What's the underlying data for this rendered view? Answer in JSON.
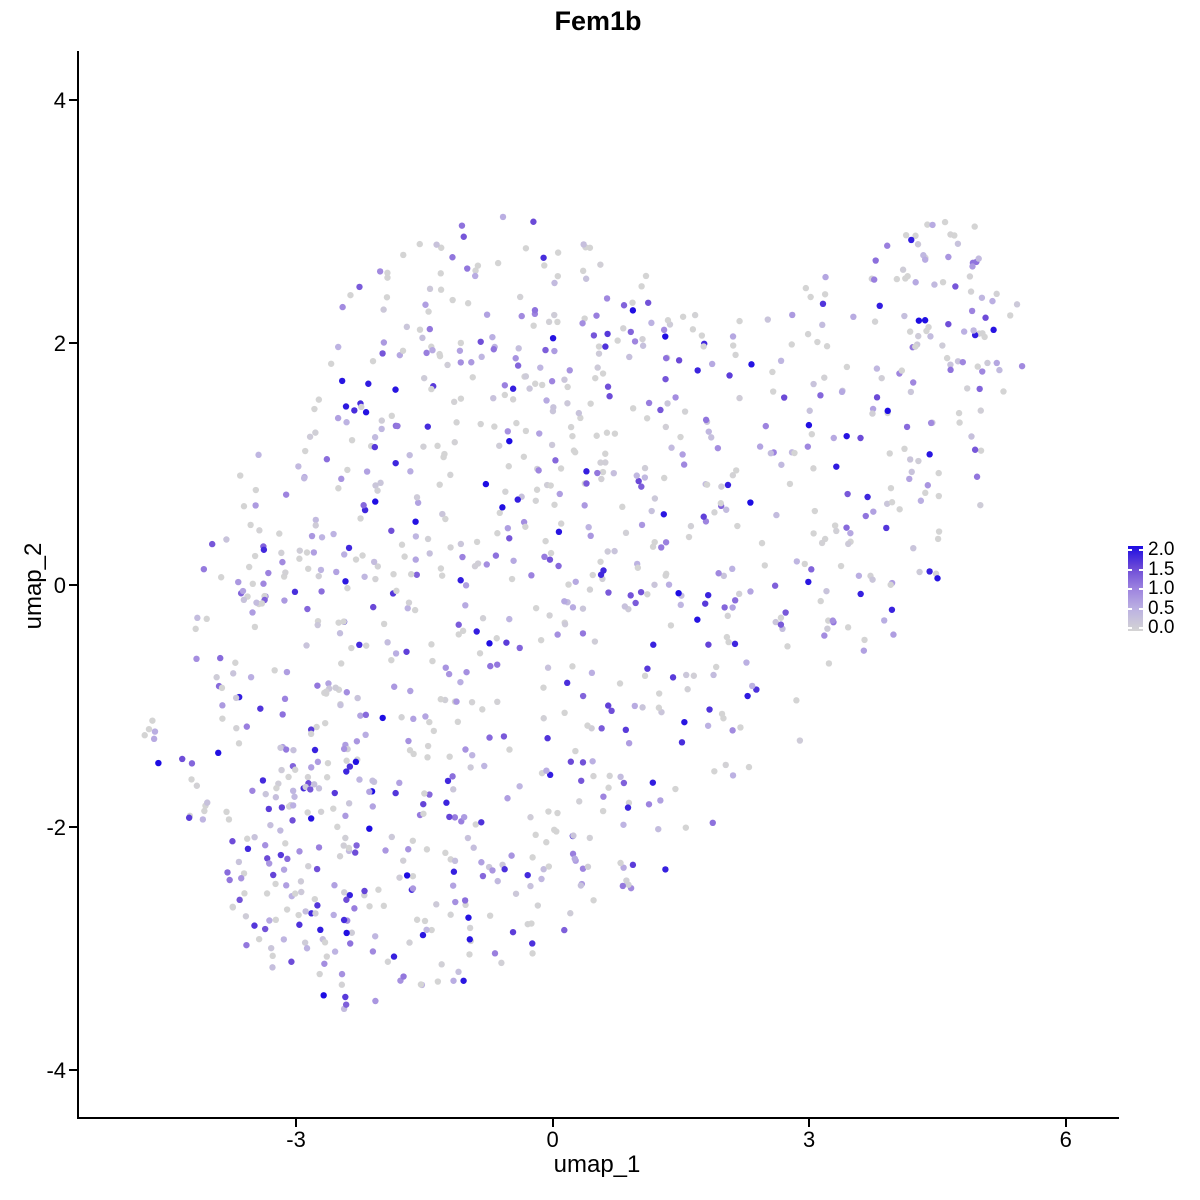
{
  "title": "Fem1b",
  "axes": {
    "x": {
      "label": "umap_1",
      "tick_labels": [
        "-3",
        "0",
        "3",
        "6"
      ],
      "tick_values": [
        -3,
        0,
        3,
        6
      ]
    },
    "y": {
      "label": "umap_2",
      "tick_labels": [
        "-4",
        "-2",
        "0",
        "2",
        "4"
      ],
      "tick_values": [
        -4,
        -2,
        0,
        2,
        4
      ]
    }
  },
  "legend": {
    "breaks": [
      2.0,
      1.5,
      1.0,
      0.5,
      0.0
    ],
    "labels": [
      "2.0",
      "1.5",
      "1.0",
      "0.5",
      "0.0"
    ]
  },
  "chart_data": {
    "type": "scatter",
    "title": "Fem1b",
    "xlabel": "umap_1",
    "ylabel": "umap_2",
    "xlim": [
      -5.55,
      6.6
    ],
    "ylim": [
      -4.4,
      4.4
    ],
    "x_ticks": [
      -3,
      0,
      3,
      6
    ],
    "y_ticks": [
      -4,
      -2,
      0,
      2,
      4
    ],
    "grid": false,
    "axis_style": "classic-left-bottom-only",
    "legend_position": "right-middle",
    "legend_title": "",
    "color_scale": {
      "domain": [
        0,
        2
      ],
      "breaks": [
        0.0,
        0.5,
        1.0,
        1.5,
        2.0
      ],
      "stops": [
        "#D4D4D4",
        "#BDB3E2",
        "#9D83DF",
        "#6A48D7",
        "#1D0CE3"
      ],
      "low_color_name": "lightgrey",
      "high_color_name": "blue"
    },
    "points": {
      "n": 1150,
      "seed": 7,
      "radius_px": 3.2,
      "boundary_polygon": [
        [
          -0.8,
          3.2
        ],
        [
          0.2,
          2.9
        ],
        [
          1.0,
          2.62
        ],
        [
          2.0,
          2.18
        ],
        [
          2.65,
          2.32
        ],
        [
          3.3,
          2.62
        ],
        [
          3.9,
          2.95
        ],
        [
          4.5,
          3.15
        ],
        [
          5.0,
          2.95
        ],
        [
          5.35,
          2.6
        ],
        [
          5.55,
          2.1
        ],
        [
          5.45,
          1.55
        ],
        [
          5.15,
          0.9
        ],
        [
          4.85,
          0.35
        ],
        [
          4.2,
          -0.3
        ],
        [
          3.5,
          -0.9
        ],
        [
          2.75,
          -1.45
        ],
        [
          2.0,
          -1.95
        ],
        [
          1.2,
          -2.45
        ],
        [
          0.4,
          -2.85
        ],
        [
          -0.4,
          -3.1
        ],
        [
          -1.2,
          -3.35
        ],
        [
          -1.9,
          -3.45
        ],
        [
          -2.45,
          -3.55
        ],
        [
          -2.9,
          -3.4
        ],
        [
          -3.35,
          -3.2
        ],
        [
          -3.75,
          -2.85
        ],
        [
          -4.05,
          -2.35
        ],
        [
          -4.35,
          -1.8
        ],
        [
          -4.4,
          -1.0
        ],
        [
          -4.25,
          -0.2
        ],
        [
          -3.95,
          0.6
        ],
        [
          -3.5,
          1.3
        ],
        [
          -2.95,
          1.9
        ],
        [
          -2.3,
          2.45
        ],
        [
          -1.6,
          2.9
        ]
      ],
      "density": {
        "base": 0.4,
        "max": 1.85,
        "blobs": [
          [
            -2.9,
            -2.35,
            1.05,
            0.8,
            1.2
          ],
          [
            -3.1,
            0.1,
            0.9,
            1.1,
            0.55
          ],
          [
            -1.6,
            -1.1,
            1.3,
            1.0,
            0.6
          ],
          [
            -0.4,
            -2.3,
            1.2,
            0.7,
            0.65
          ],
          [
            -1.0,
            1.3,
            1.5,
            1.0,
            0.65
          ],
          [
            -0.6,
            2.5,
            1.6,
            0.5,
            0.55
          ],
          [
            0.9,
            0.3,
            1.2,
            1.2,
            0.45
          ],
          [
            1.7,
            1.6,
            1.0,
            0.7,
            0.4
          ],
          [
            4.55,
            2.3,
            0.8,
            0.65,
            1.1
          ],
          [
            3.6,
            1.1,
            0.9,
            0.8,
            0.5
          ],
          [
            4.3,
            0.0,
            0.9,
            0.5,
            0.35
          ]
        ]
      },
      "expression_distribution": {
        "p_zero": 0.24,
        "power": 1.7,
        "scale": 2.05,
        "max": 2.0
      }
    },
    "outlier_points": [
      [
        -4.68,
        -1.12,
        0.0
      ],
      [
        -4.77,
        -1.24,
        0.0
      ],
      [
        -4.72,
        -1.19,
        0.0
      ],
      [
        -4.65,
        -1.21,
        0.55
      ],
      [
        -4.66,
        -1.27,
        0.6
      ],
      [
        -4.61,
        -1.47,
        2.0
      ]
    ]
  }
}
